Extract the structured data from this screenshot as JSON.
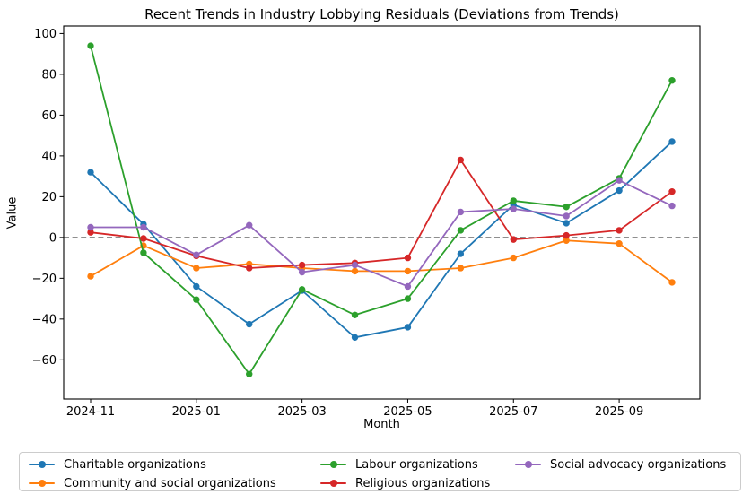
{
  "chart_data": {
    "type": "line",
    "title": "Recent Trends in Industry Lobbying Residuals (Deviations from Trends)",
    "xlabel": "Month",
    "ylabel": "Value",
    "categories": [
      "2024-11",
      "2024-12",
      "2025-01",
      "2025-02",
      "2025-03",
      "2025-04",
      "2025-05",
      "2025-06",
      "2025-07",
      "2025-08",
      "2025-09",
      "2025-10"
    ],
    "x_tick_labels": [
      "2024-11",
      "2025-01",
      "2025-03",
      "2025-05",
      "2025-07",
      "2025-09"
    ],
    "y_ticks": [
      100,
      80,
      60,
      40,
      20,
      0,
      -20,
      -40,
      -60
    ],
    "ylim": [
      -79.2,
      103.7
    ],
    "grid": false,
    "legend_position": "bottom",
    "zero_line": {
      "value": 0,
      "color": "#7f7f7f",
      "style": "dashed"
    },
    "series": [
      {
        "name": "Charitable organizations",
        "color": "#1f77b4",
        "values": [
          32,
          6.5,
          -24,
          -42.5,
          -26,
          -49,
          -44,
          -8,
          16,
          7,
          23,
          47
        ]
      },
      {
        "name": "Community and social organizations",
        "color": "#ff7f0e",
        "values": [
          -19,
          -4,
          -15,
          -13,
          -15,
          -16.5,
          -16.5,
          -15,
          -10,
          -1.5,
          -3,
          -22
        ]
      },
      {
        "name": "Labour organizations",
        "color": "#2ca02c",
        "values": [
          94,
          -7.5,
          -30.5,
          -67,
          -25.5,
          -38,
          -30,
          3.5,
          18,
          15,
          29,
          77
        ]
      },
      {
        "name": "Religious organizations",
        "color": "#d62728",
        "values": [
          2.5,
          -0.5,
          -9,
          -15,
          -13.5,
          -12.5,
          -10,
          38,
          -1,
          1,
          3.5,
          22.5
        ]
      },
      {
        "name": "Social advocacy organizations",
        "color": "#9467bd",
        "values": [
          5,
          5,
          -8.5,
          6,
          -17,
          -13.5,
          -24,
          12.5,
          14,
          10.5,
          28,
          15.5
        ]
      }
    ]
  }
}
